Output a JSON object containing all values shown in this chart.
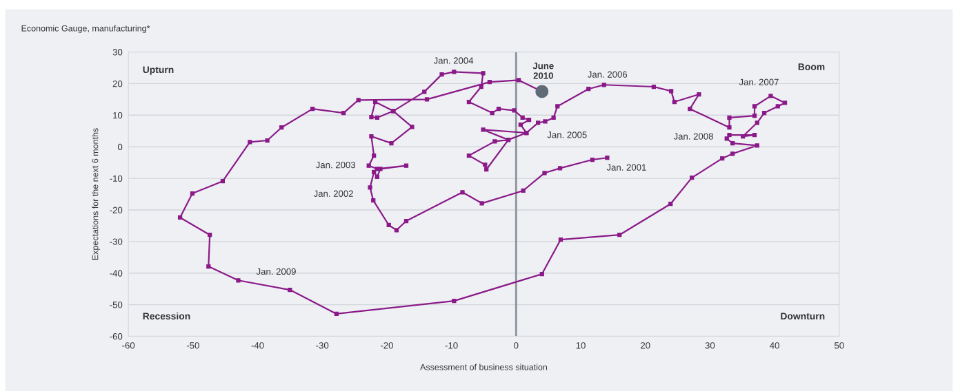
{
  "chart_data": {
    "type": "line",
    "title": "Economic Gauge, manufacturing*",
    "xlabel": "Assessment of business situation",
    "ylabel": "Expectations for the next 6 months",
    "xlim": [
      -60,
      50
    ],
    "xticks": [
      -60,
      -50,
      -40,
      -30,
      -20,
      -10,
      0,
      10,
      20,
      30,
      40,
      50
    ],
    "ylim": [
      -60,
      30
    ],
    "yticks": [
      -60,
      -50,
      -40,
      -30,
      -20,
      -10,
      0,
      10,
      20,
      30
    ],
    "grid": "y",
    "marker": "square",
    "line_style": "solid",
    "ref_lines": [
      {
        "axis": "x",
        "value": 0,
        "color": "#8c939a"
      }
    ],
    "series": [
      {
        "color": "#8b1a89",
        "x": [
          14.1,
          11.8,
          6.8,
          4.4,
          1.1,
          -5.3,
          -8.3,
          -17,
          -18.5,
          -19.7,
          -22.1,
          -22.6,
          -22,
          -21.5,
          -21,
          -17,
          -21.5,
          -22.8,
          -22,
          -22.4,
          -19.3,
          -16.1,
          -19,
          -21.5,
          -22.4,
          -21.8,
          -19,
          -14.2,
          -11.5,
          -9.6,
          -5.1,
          -5.4,
          -7.3,
          -3.7,
          -2.7,
          -0.3,
          1,
          2,
          0.7,
          1.6,
          -5.1,
          -1.2,
          -3.3,
          -7.3,
          -4.8,
          -4.6,
          -1.2,
          1.6,
          3.4,
          4.5,
          5.8,
          6.4,
          11.2,
          13.6,
          21.3,
          24,
          24.5,
          28.3,
          26.9,
          33,
          33,
          36.9,
          36.9,
          39.4,
          41.6,
          40.5,
          38.4,
          37.3,
          35.1,
          36.9,
          33,
          32.6,
          33.5,
          37.3,
          33.5,
          31.9,
          27.2,
          23.9,
          16,
          6.9,
          4,
          -9.6,
          -27.8,
          -35,
          -43,
          -47.6,
          -47.4,
          -52,
          -50.1,
          -45.4,
          -41.2,
          -38.5,
          -36.3,
          -31.5,
          -26.7,
          -24.4,
          -13.8,
          -4.1,
          0.4,
          4
        ],
        "values": [
          -3.5,
          -4.1,
          -6.8,
          -8.3,
          -13.9,
          -17.9,
          -14.4,
          -23.5,
          -26.4,
          -24.8,
          -17,
          -12.9,
          -8,
          -9.5,
          -7,
          -6,
          -7,
          -6,
          -2.8,
          3.3,
          1.1,
          6.3,
          11.3,
          9.2,
          9.4,
          14.2,
          11.3,
          17.4,
          22.9,
          23.7,
          23.3,
          19,
          14.2,
          10.7,
          12,
          11.5,
          9.2,
          8.5,
          7,
          4.4,
          5.4,
          2.2,
          1.7,
          -2.8,
          -5.7,
          -7.2,
          2.2,
          4.4,
          7.6,
          8,
          9.2,
          12.8,
          18.3,
          19.6,
          19,
          17.6,
          14.2,
          16.6,
          12,
          6.1,
          9.2,
          9.8,
          12.8,
          16.1,
          13.9,
          12.8,
          10.7,
          7.6,
          3.3,
          3.7,
          3.7,
          2.6,
          1.1,
          0.4,
          -2.2,
          -3.7,
          -9.8,
          -18.1,
          -27.9,
          -29.4,
          -40.3,
          -48.8,
          -52.9,
          -45.3,
          -42.3,
          -37.9,
          -27.9,
          -22.4,
          -14.8,
          -10.9,
          1.5,
          2,
          6.1,
          12,
          10.7,
          14.8,
          15,
          20.5,
          21.1,
          17.5
        ]
      },
      {
        "type": "scatter",
        "marker": "circle",
        "color": "#5f6b76",
        "x": [
          4
        ],
        "values": [
          17.5
        ]
      }
    ],
    "annotations": [
      "Upturn",
      "Boom",
      "Recession",
      "Downturn",
      "Jan. 2009",
      {
        "text": "Jan. 2001",
        "x": 14.1,
        "y": -3.5
      },
      {
        "text": "Jan. 2002",
        "x": -22.6,
        "y": -12.9
      },
      {
        "text": "Jan. 2003",
        "x": -22.8,
        "y": -6
      },
      {
        "text": "Jan. 2004",
        "x": -11.5,
        "y": 22.9
      },
      {
        "text": "Jan. 2005",
        "x": 1.6,
        "y": 4.4
      },
      {
        "text": "Jan. 2006",
        "x": 13.6,
        "y": 19.6
      },
      {
        "text": "Jan. 2007",
        "x": 39.4,
        "y": 16.1
      },
      {
        "text": "Jan. 2008",
        "x": 33,
        "y": 3.7
      },
      {
        "text": "June\n2010",
        "x": 4,
        "y": 17.5
      }
    ]
  }
}
